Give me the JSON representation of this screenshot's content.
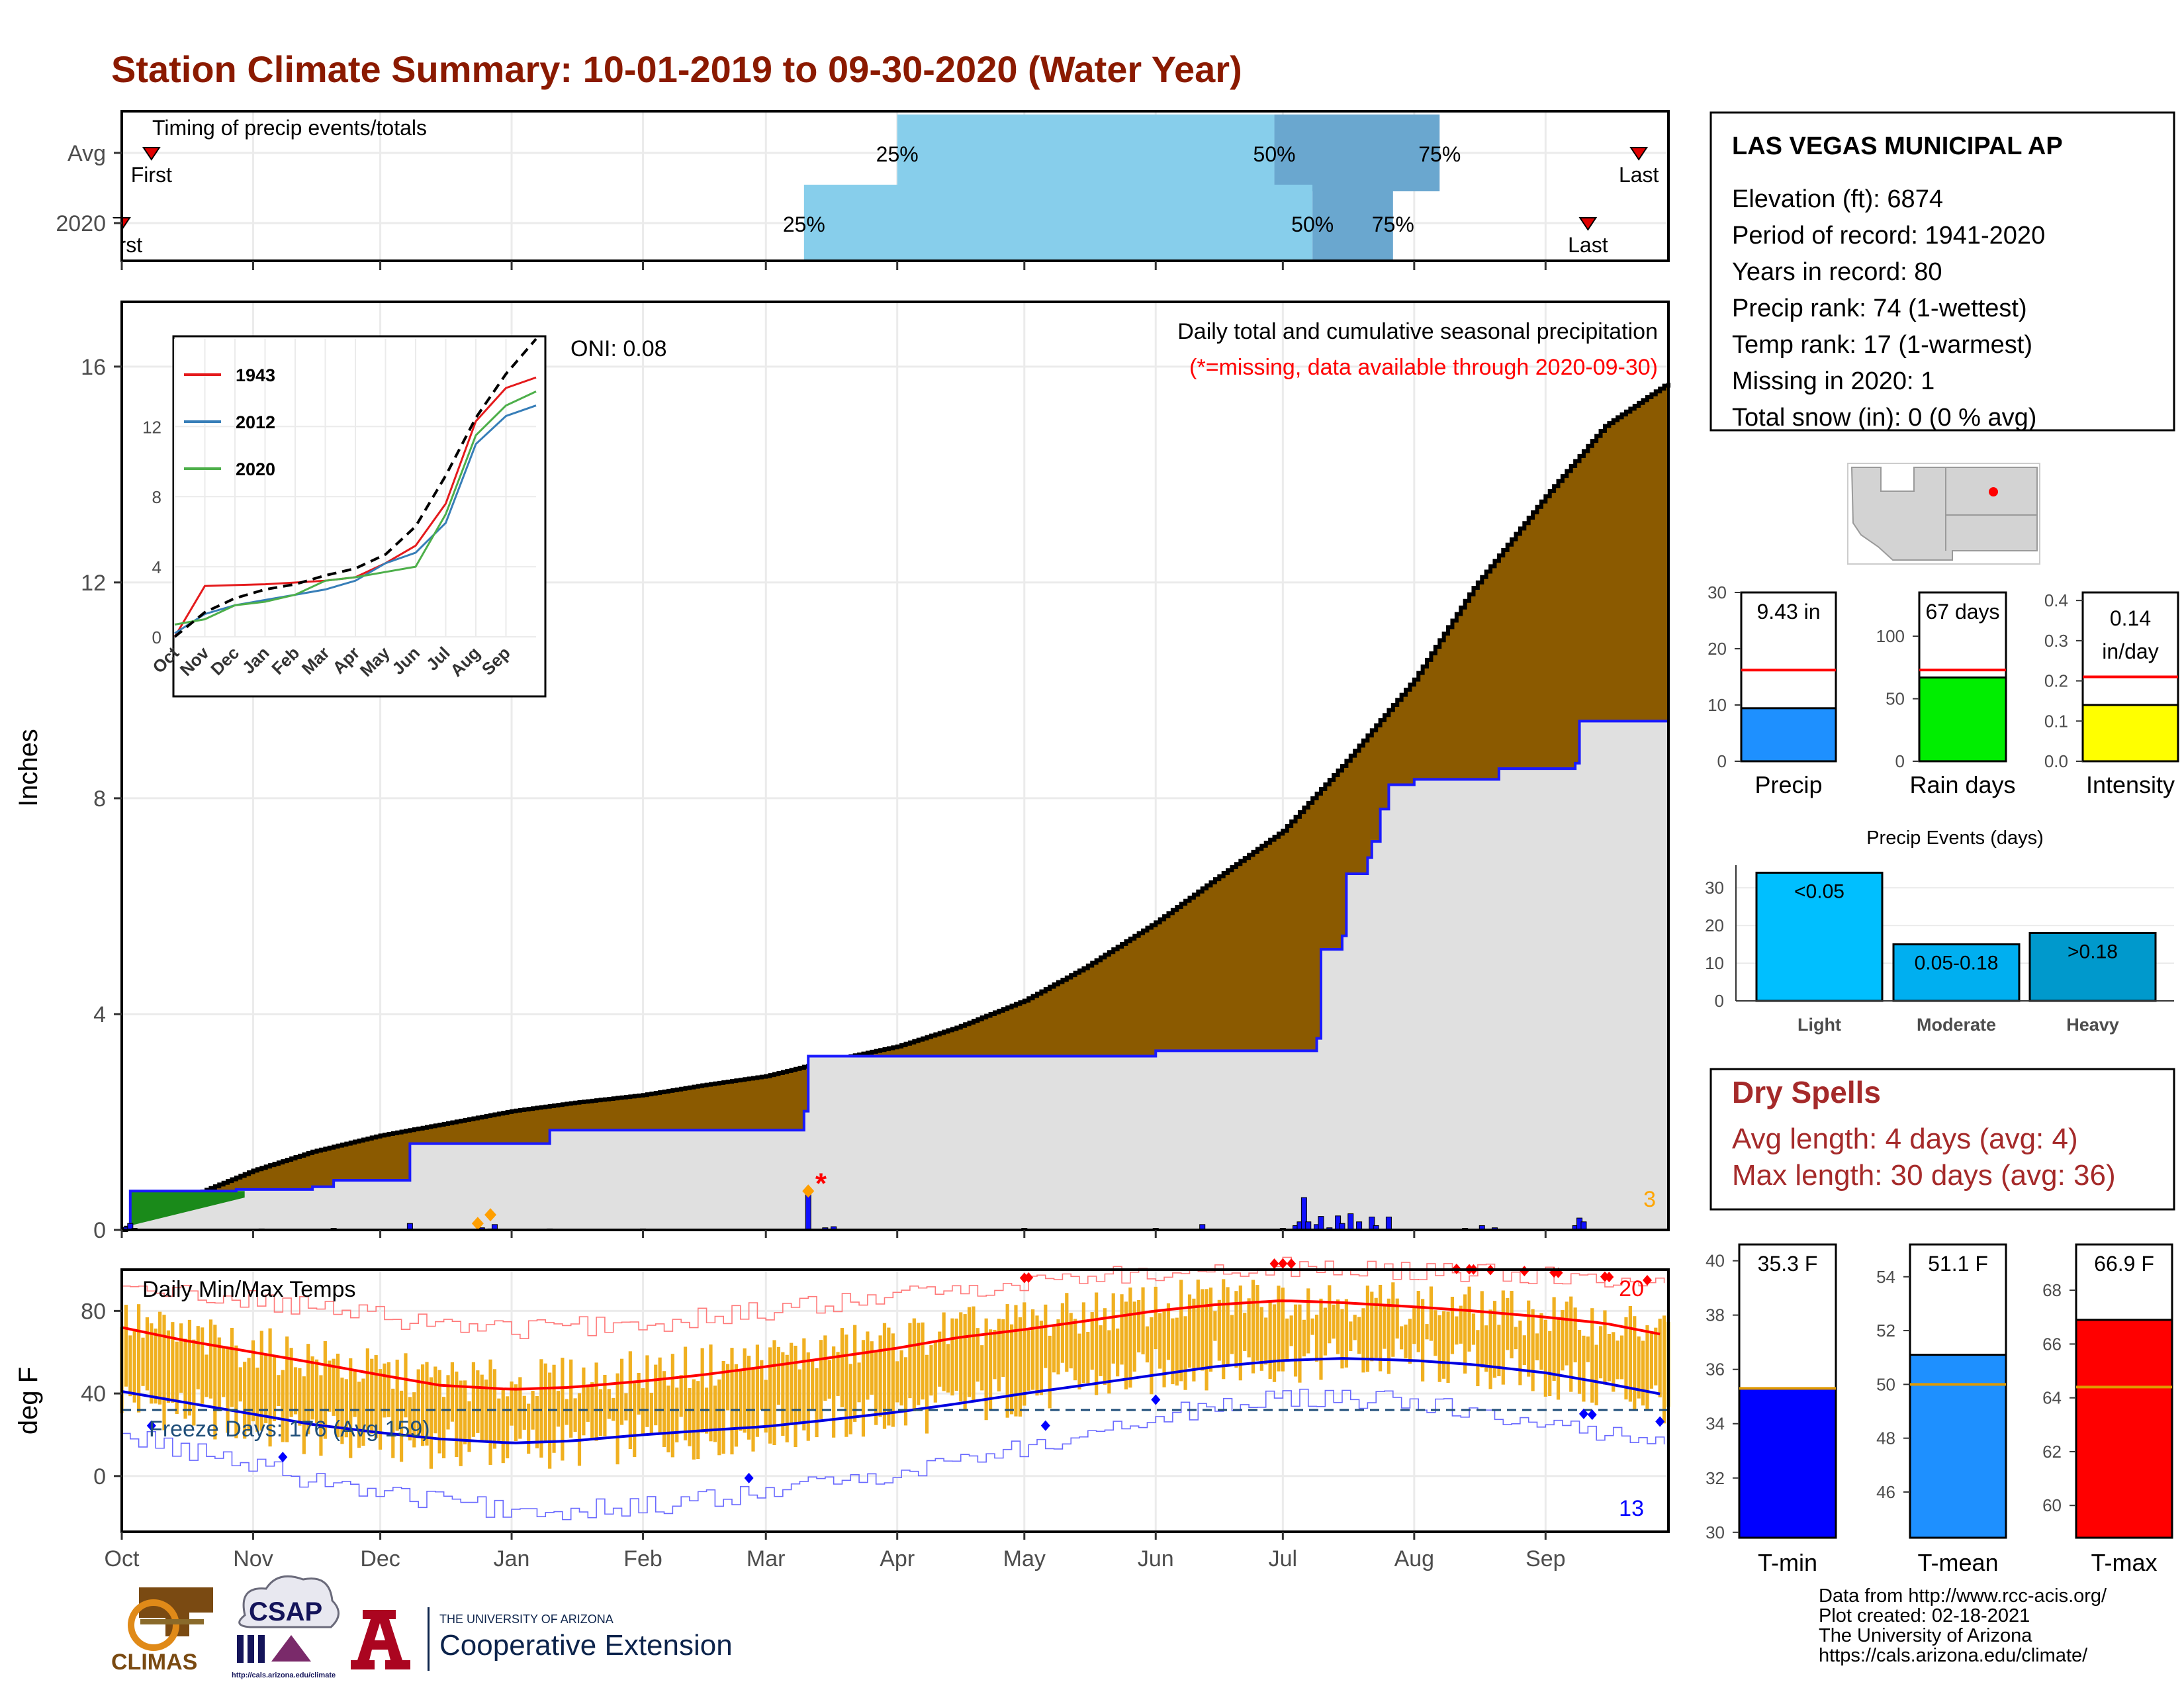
{
  "page": {
    "title": "Station Climate Summary: 10-01-2019 to 09-30-2020 (Water Year)"
  },
  "colors": {
    "title": "#8b1a00",
    "cumulative_fill": "#8b5a00",
    "current_fill": "#e0e0e0",
    "current_line": "#1a1aff",
    "timing_light": "#87ceeb",
    "timing_dark": "#6aa7cf",
    "temp_bars": "#f0b020",
    "dry_spells": "#a52a2a"
  },
  "station_info": {
    "name": "LAS VEGAS MUNICIPAL AP",
    "lines": [
      "Elevation (ft): 6874",
      "Period of record: 1941-2020",
      "Years in record: 80",
      "Precip rank: 74 (1-wettest)",
      "Temp rank: 17 (1-warmest)",
      "Missing in 2020: 1",
      "Total snow (in): 0 (0 % avg)"
    ]
  },
  "dry_spells": {
    "title": "Dry Spells",
    "avg": "Avg length: 4 days (avg: 4)",
    "max": "Max length: 30 days (avg: 36)"
  },
  "footer": {
    "lines": [
      "Data from http://www.rcc-acis.org/",
      "Plot created: 02-18-2021",
      "The University of Arizona",
      "https://cals.arizona.edu/climate/"
    ]
  },
  "logos": {
    "climas": "CLIMAS",
    "csap": "CSAP",
    "csap_url": "http://cals.arizona.edu/climate",
    "ua_small": "THE UNIVERSITY OF ARIZONA",
    "ua_big": "Cooperative Extension"
  },
  "chart_data": [
    {
      "type": "range-bar",
      "title": "Timing of precip events/totals",
      "categories": [
        "Avg",
        "2020"
      ],
      "series": [
        {
          "name": "Avg",
          "first": "10-08",
          "p25": "04-01",
          "p50": "06-29",
          "p75": "08-07",
          "last": "09-23"
        },
        {
          "name": "2020",
          "first": "10-01",
          "p25": "03-10",
          "p50": "07-08",
          "p75": "07-27",
          "last": "09-11"
        }
      ],
      "labels": {
        "first": "First",
        "last": "Last",
        "p25": "25%",
        "p50": "50%",
        "p75": "75%"
      }
    },
    {
      "type": "area",
      "title": "Daily total and cumulative seasonal precipitation",
      "subtitle": "(*=missing, data available through 2020-09-30)",
      "annotation": "ONI: 0.08",
      "corner_label": "3",
      "ylabel": "Inches",
      "ylim": [
        0,
        17.2
      ],
      "yticks": [
        0,
        4,
        8,
        12,
        16
      ],
      "xticks": [
        "Oct",
        "Nov",
        "Dec",
        "Jan",
        "Feb",
        "Mar",
        "Apr",
        "May",
        "Jun",
        "Jul",
        "Aug",
        "Sep"
      ],
      "avg_cumulative": {
        "x": [
          "10-01",
          "10-15",
          "11-01",
          "11-15",
          "12-01",
          "12-15",
          "01-01",
          "01-15",
          "02-01",
          "02-15",
          "03-01",
          "03-15",
          "04-01",
          "04-15",
          "05-01",
          "05-15",
          "06-01",
          "06-15",
          "07-01",
          "07-15",
          "08-01",
          "08-15",
          "09-01",
          "09-15",
          "09-30"
        ],
        "y": [
          0.0,
          0.55,
          1.1,
          1.45,
          1.75,
          1.95,
          2.2,
          2.35,
          2.5,
          2.68,
          2.85,
          3.12,
          3.4,
          3.75,
          4.25,
          4.85,
          5.7,
          6.5,
          7.4,
          8.6,
          10.2,
          11.9,
          13.6,
          14.9,
          15.7
        ]
      },
      "current_cumulative": {
        "x": [
          "10-01",
          "10-03",
          "10-20",
          "10-28",
          "11-15",
          "11-20",
          "12-08",
          "01-01",
          "01-10",
          "03-10",
          "03-11",
          "05-31",
          "06-01",
          "07-03",
          "07-09",
          "07-10",
          "07-15",
          "07-16",
          "07-21",
          "07-22",
          "07-24",
          "07-26",
          "08-01",
          "08-20",
          "08-21",
          "09-08",
          "09-09",
          "09-30"
        ],
        "y": [
          0.0,
          0.72,
          0.72,
          0.75,
          0.8,
          0.92,
          1.6,
          1.6,
          1.85,
          2.2,
          3.22,
          3.22,
          3.32,
          3.32,
          3.55,
          5.2,
          5.45,
          6.6,
          6.9,
          7.2,
          7.8,
          8.25,
          8.35,
          8.35,
          8.55,
          8.65,
          9.43,
          9.43
        ]
      },
      "daily_bars": {
        "x": [
          "10-02",
          "10-03",
          "10-04",
          "11-03",
          "11-20",
          "12-08",
          "12-25",
          "12-27",
          "12-28",
          "01-10",
          "02-01",
          "03-11",
          "03-15",
          "03-17",
          "05-01",
          "06-01",
          "06-12",
          "07-01",
          "07-04",
          "07-05",
          "07-06",
          "07-07",
          "07-09",
          "07-10",
          "07-12",
          "07-14",
          "07-15",
          "07-17",
          "07-19",
          "07-22",
          "07-23",
          "07-26",
          "08-13",
          "08-17",
          "08-20",
          "09-08",
          "09-09",
          "09-10"
        ],
        "y": [
          0.05,
          0.12,
          0.03,
          0.02,
          0.03,
          0.12,
          0.04,
          0.02,
          0.1,
          0.02,
          0.02,
          0.7,
          0.04,
          0.06,
          0.03,
          0.03,
          0.1,
          0.03,
          0.08,
          0.15,
          0.6,
          0.15,
          0.1,
          0.25,
          0.04,
          0.26,
          0.12,
          0.3,
          0.15,
          0.24,
          0.08,
          0.24,
          0.03,
          0.08,
          0.04,
          0.08,
          0.22,
          0.15
        ]
      },
      "markers": [
        {
          "date": "12-24",
          "value": 0.12,
          "kind": "orange diamond"
        },
        {
          "date": "12-27",
          "value": 0.28,
          "kind": "orange diamond"
        },
        {
          "date": "03-11",
          "value": 0.72,
          "kind": "orange diamond"
        },
        {
          "date": "03-14",
          "value": 0.95,
          "kind": "missing"
        }
      ]
    },
    {
      "type": "line",
      "inset": true,
      "legend_position": "top-left",
      "ylim": [
        0,
        17
      ],
      "yticks": [
        0,
        4,
        8,
        12
      ],
      "xticks": [
        "Oct",
        "Nov",
        "Dec",
        "Jan",
        "Feb",
        "Mar",
        "Apr",
        "May",
        "Jun",
        "Jul",
        "Aug",
        "Sep"
      ],
      "x": [
        0,
        1,
        2,
        3,
        4,
        5,
        6,
        7,
        8,
        9,
        10,
        11,
        12
      ],
      "series": [
        {
          "name": "1943",
          "color": "#e41a1c",
          "values": [
            0.0,
            2.9,
            2.95,
            3.0,
            3.1,
            3.2,
            3.4,
            4.2,
            5.2,
            7.6,
            12.3,
            14.2,
            14.8
          ]
        },
        {
          "name": "2012",
          "color": "#377eb8",
          "values": [
            0.2,
            1.3,
            1.8,
            2.1,
            2.4,
            2.7,
            3.2,
            4.2,
            4.8,
            6.5,
            11.0,
            12.6,
            13.2
          ]
        },
        {
          "name": "2020",
          "color": "#4daf4a",
          "values": [
            0.7,
            1.0,
            1.8,
            2.0,
            2.4,
            3.2,
            3.4,
            3.7,
            4.0,
            7.0,
            11.5,
            13.2,
            14.0
          ]
        },
        {
          "name": "",
          "color": "#000000",
          "dashed": true,
          "values": [
            0.0,
            1.4,
            2.2,
            2.7,
            3.0,
            3.5,
            3.9,
            4.7,
            6.3,
            9.2,
            12.5,
            15.0,
            17.0
          ]
        }
      ]
    },
    {
      "type": "line",
      "title": "Daily Min/Max Temps",
      "annotation": "Freeze Days: 176 (Avg 159)",
      "ylabel": "deg F",
      "ylim": [
        -27,
        100
      ],
      "yticks": [
        0,
        40,
        80
      ],
      "xticks": [
        "Oct",
        "Nov",
        "Dec",
        "Jan",
        "Feb",
        "Mar",
        "Apr",
        "May",
        "Jun",
        "Jul",
        "Aug",
        "Sep"
      ],
      "record_counts": {
        "highs": "20",
        "lows": "13"
      },
      "freeze_line": 32,
      "avg_max": {
        "x": [
          "10-01",
          "10-15",
          "11-01",
          "11-15",
          "12-01",
          "12-15",
          "01-01",
          "01-15",
          "02-01",
          "02-15",
          "03-01",
          "03-15",
          "04-01",
          "04-15",
          "05-01",
          "05-15",
          "06-01",
          "06-15",
          "07-01",
          "07-15",
          "08-01",
          "08-15",
          "09-01",
          "09-15",
          "09-30"
        ],
        "y": [
          72,
          66,
          60,
          55,
          49,
          44,
          42,
          43,
          46,
          49,
          53,
          57,
          62,
          67,
          71,
          75,
          80,
          83,
          85,
          84,
          82,
          80,
          77,
          74,
          68
        ]
      },
      "avg_min": {
        "x": [
          "10-01",
          "10-15",
          "11-01",
          "11-15",
          "12-01",
          "12-15",
          "01-01",
          "01-15",
          "02-01",
          "02-15",
          "03-01",
          "03-15",
          "04-01",
          "04-15",
          "05-01",
          "05-15",
          "06-01",
          "06-15",
          "07-01",
          "07-15",
          "08-01",
          "08-15",
          "09-01",
          "09-15",
          "09-30"
        ],
        "y": [
          41,
          36,
          30,
          25,
          21,
          18,
          16,
          17,
          20,
          22,
          24,
          27,
          31,
          35,
          40,
          44,
          49,
          53,
          56,
          57,
          56,
          54,
          50,
          45,
          39
        ]
      },
      "record_high": {
        "x": [
          "10-01",
          "11-01",
          "12-01",
          "01-01",
          "02-01",
          "03-01",
          "04-01",
          "05-01",
          "06-01",
          "07-01",
          "08-01",
          "09-01",
          "09-30"
        ],
        "y": [
          92,
          85,
          77,
          71,
          74,
          80,
          87,
          94,
          99,
          101,
          99,
          97,
          92
        ]
      },
      "record_low": {
        "x": [
          "10-01",
          "11-01",
          "12-01",
          "01-01",
          "02-01",
          "03-01",
          "04-01",
          "05-01",
          "06-01",
          "07-01",
          "08-01",
          "09-01",
          "09-30"
        ],
        "y": [
          20,
          4,
          -8,
          -17,
          -15,
          -8,
          2,
          14,
          29,
          38,
          36,
          24,
          18
        ]
      },
      "daily_band": {
        "x": [
          "10-01",
          "10-15",
          "11-01",
          "11-15",
          "12-01",
          "12-15",
          "01-01",
          "01-15",
          "02-01",
          "02-15",
          "03-01",
          "03-15",
          "04-01",
          "04-15",
          "05-01",
          "05-15",
          "06-01",
          "06-15",
          "07-01",
          "07-15",
          "08-01",
          "08-15",
          "09-01",
          "09-15",
          "09-30"
        ],
        "low": [
          38,
          32,
          25,
          20,
          18,
          15,
          14,
          15,
          18,
          20,
          22,
          27,
          30,
          34,
          40,
          45,
          50,
          54,
          56,
          57,
          56,
          53,
          48,
          42,
          36
        ],
        "high": [
          76,
          68,
          62,
          57,
          50,
          47,
          45,
          47,
          50,
          53,
          57,
          61,
          66,
          71,
          75,
          79,
          83,
          86,
          87,
          86,
          83,
          81,
          78,
          74,
          70
        ]
      },
      "record_high_marks": [
        "05-01",
        "05-02",
        "06-29",
        "07-01",
        "07-03",
        "08-11",
        "08-14",
        "08-15",
        "08-19",
        "08-27",
        "09-03",
        "09-04",
        "09-15",
        "09-16",
        "09-25"
      ],
      "record_low_marks": [
        "10-08",
        "11-08",
        "02-26",
        "05-06",
        "06-01",
        "09-10",
        "09-12",
        "09-28"
      ]
    },
    {
      "type": "bar",
      "title": "Precip",
      "value_label": "9.43 in",
      "values": [
        9.43
      ],
      "average": 16.2,
      "color": "#1e90ff",
      "ylim": [
        0,
        30
      ],
      "yticks": [
        0,
        10,
        20,
        30
      ]
    },
    {
      "type": "bar",
      "title": "Rain days",
      "value_label": "67 days",
      "values": [
        67
      ],
      "average": 73,
      "color": "#00ee00",
      "ylim": [
        0,
        135
      ],
      "yticks": [
        0,
        50,
        100
      ]
    },
    {
      "type": "bar",
      "title": "Intensity",
      "value_label": [
        "0.14",
        "in/day"
      ],
      "values": [
        0.14
      ],
      "average": 0.21,
      "color": "#ffff00",
      "ylim": [
        0,
        0.42
      ],
      "yticks": [
        "0.0",
        "0.1",
        "0.2",
        "0.3",
        "0.4"
      ]
    },
    {
      "type": "bar",
      "title": "Precip Events (days)",
      "categories": [
        "Light",
        "Moderate",
        "Heavy"
      ],
      "bar_labels": [
        "<0.05",
        "0.05-0.18",
        ">0.18"
      ],
      "values": [
        34,
        15,
        18
      ],
      "colors": [
        "#00bfff",
        "#00aff0",
        "#0099cc"
      ],
      "ylim": [
        0,
        36
      ],
      "yticks": [
        0,
        10,
        20,
        30
      ]
    },
    {
      "type": "bar",
      "title": "T-min",
      "value_label": "35.3 F",
      "values": [
        35.3
      ],
      "average": 35.3,
      "color": "#0000ff",
      "ylim": [
        29.8,
        40.6
      ],
      "yticks": [
        30,
        32,
        34,
        36,
        38,
        40
      ]
    },
    {
      "type": "bar",
      "title": "T-mean",
      "value_label": "51.1 F",
      "values": [
        51.1
      ],
      "average": 50.0,
      "color": "#1e90ff",
      "ylim": [
        44.3,
        55.2
      ],
      "yticks": [
        46,
        48,
        50,
        52,
        54
      ]
    },
    {
      "type": "bar",
      "title": "T-max",
      "value_label": "66.9 F",
      "values": [
        66.9
      ],
      "average": 64.4,
      "color": "#ff0000",
      "ylim": [
        58.8,
        69.7
      ],
      "yticks": [
        60,
        62,
        64,
        66,
        68
      ]
    }
  ]
}
